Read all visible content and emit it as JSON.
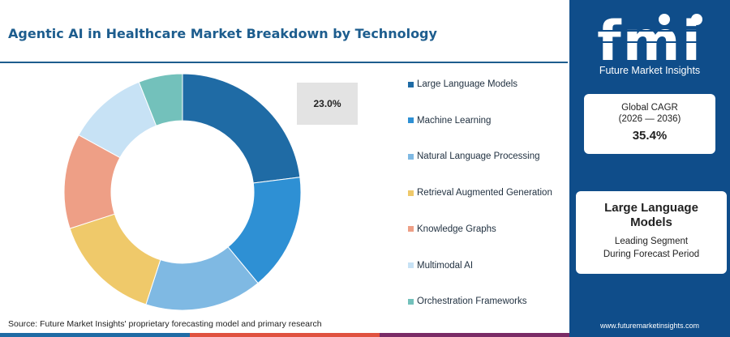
{
  "title": "Agentic AI in Healthcare Market Breakdown by Technology",
  "source": "Source: Future Market Insights' proprietary forecasting model and primary research",
  "callout_label": "23.0%",
  "colors": {
    "title": "#1d5d8e",
    "panel": "#0f4d8a"
  },
  "chart_data": {
    "type": "pie",
    "donut": true,
    "categories": [
      "Large Language Models",
      "Machine Learning",
      "Natural Language Processing",
      "Retrieval Augmented Generation",
      "Knowledge Graphs",
      "Multimodal AI",
      "Orchestration Frameworks"
    ],
    "values": [
      23.0,
      16.0,
      16.0,
      15.0,
      13.0,
      11.0,
      6.0
    ],
    "colors": [
      "#1f6ba5",
      "#2e90d4",
      "#7fb9e3",
      "#efc96a",
      "#ee9f86",
      "#c7e2f5",
      "#73c1bb"
    ],
    "legend_position": "right"
  },
  "panel": {
    "logo_text": "fmi",
    "logo_tagline": "Future Market Insights",
    "cagr_label": "Global CAGR",
    "cagr_period": "(2026 — 2036)",
    "cagr_value": "35.4%",
    "segment_name": "Large Language Models",
    "segment_sub_line1": "Leading Segment",
    "segment_sub_line2": "During Forecast Period",
    "website": "www.futuremarketinsights.com"
  },
  "bottom_bar_colors": [
    "#1f6ba5",
    "#e0513f",
    "#7a2b66",
    "#7fb9e3"
  ]
}
